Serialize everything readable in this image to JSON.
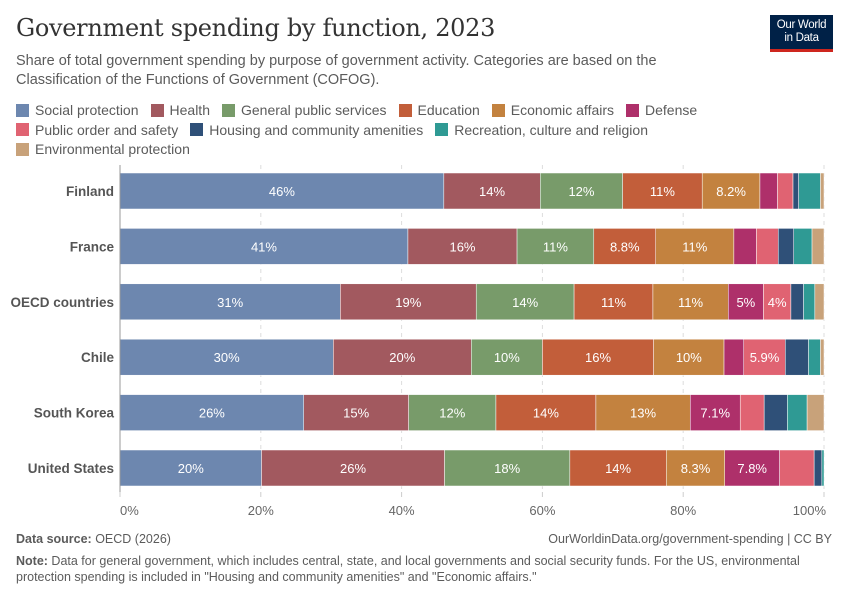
{
  "header": {
    "title": "Government spending by function, 2023",
    "subtitle": "Share of total government spending by purpose of government activity. Categories are based on the Classification of the Functions of Government (COFOG).",
    "logo_line1": "Our World",
    "logo_line2": "in Data"
  },
  "footer": {
    "source_label": "Data source:",
    "source_value": " OECD (2026)",
    "url": "OurWorldinData.org/government-spending | CC BY",
    "note_label": "Note:",
    "note_value": " Data for general government, which includes central, state, and local governments and social security funds. For the US, environmental protection spending is included in \"Housing and community amenities\" and \"Economic affairs.\""
  },
  "chart_data": {
    "type": "bar",
    "orientation": "horizontal",
    "stacked": true,
    "title": "Government spending by function, 2023",
    "xlabel": "",
    "ylabel": "",
    "xlim": [
      0,
      100
    ],
    "x_ticks": [
      "0%",
      "20%",
      "40%",
      "60%",
      "80%",
      "100%"
    ],
    "x_tick_values": [
      0,
      20,
      40,
      60,
      80,
      100
    ],
    "grid": "vertical dashed",
    "legend_position": "top",
    "categories": [
      "Finland",
      "France",
      "OECD countries",
      "Chile",
      "South Korea",
      "United States"
    ],
    "series": [
      {
        "name": "Social protection",
        "color": "#6d87af",
        "values": [
          46.0,
          40.9,
          31.3,
          30.3,
          26.1,
          20.1
        ],
        "labels": [
          "46%",
          "41%",
          "31%",
          "30%",
          "26%",
          "20%"
        ]
      },
      {
        "name": "Health",
        "color": "#a2595f",
        "values": [
          13.7,
          15.5,
          19.3,
          19.6,
          14.9,
          26.0
        ],
        "labels": [
          "14%",
          "16%",
          "19%",
          "20%",
          "15%",
          "26%"
        ]
      },
      {
        "name": "General public services",
        "color": "#789b6a",
        "values": [
          11.7,
          10.9,
          13.9,
          10.1,
          12.4,
          17.8
        ],
        "labels": [
          "12%",
          "11%",
          "14%",
          "10%",
          "12%",
          "18%"
        ]
      },
      {
        "name": "Education",
        "color": "#c25e3a",
        "values": [
          11.3,
          8.8,
          11.2,
          15.8,
          14.2,
          13.7
        ],
        "labels": [
          "11%",
          "8.8%",
          "11%",
          "16%",
          "14%",
          "14%"
        ]
      },
      {
        "name": "Economic affairs",
        "color": "#c3823f",
        "values": [
          8.2,
          11.1,
          10.7,
          10.0,
          13.4,
          8.3
        ],
        "labels": [
          "8.2%",
          "11%",
          "11%",
          "10%",
          "13%",
          "8.3%"
        ]
      },
      {
        "name": "Defense",
        "color": "#ae306a",
        "values": [
          2.5,
          3.2,
          5.0,
          2.8,
          7.1,
          7.8
        ],
        "labels": [
          "",
          "",
          "5%",
          "",
          "7.1%",
          "7.8%"
        ]
      },
      {
        "name": "Public order and safety",
        "color": "#e06372",
        "values": [
          2.2,
          3.1,
          3.9,
          5.9,
          3.4,
          4.9
        ],
        "labels": [
          "",
          "",
          "4%",
          "5.9%",
          "",
          ""
        ]
      },
      {
        "name": "Housing and community amenities",
        "color": "#2f5078",
        "values": [
          0.8,
          2.2,
          1.8,
          3.3,
          3.3,
          1.1
        ],
        "labels": [
          "",
          "",
          "",
          "",
          "",
          ""
        ]
      },
      {
        "name": "Recreation, culture and religion",
        "color": "#2f9a94",
        "values": [
          3.1,
          2.6,
          1.6,
          1.7,
          2.8,
          0.3
        ],
        "labels": [
          "",
          "",
          "",
          "",
          "",
          ""
        ]
      },
      {
        "name": "Environmental protection",
        "color": "#c8a27a",
        "values": [
          0.5,
          1.7,
          1.3,
          0.5,
          2.4,
          0.0
        ],
        "labels": [
          "",
          "",
          "",
          "",
          "",
          ""
        ]
      }
    ]
  }
}
